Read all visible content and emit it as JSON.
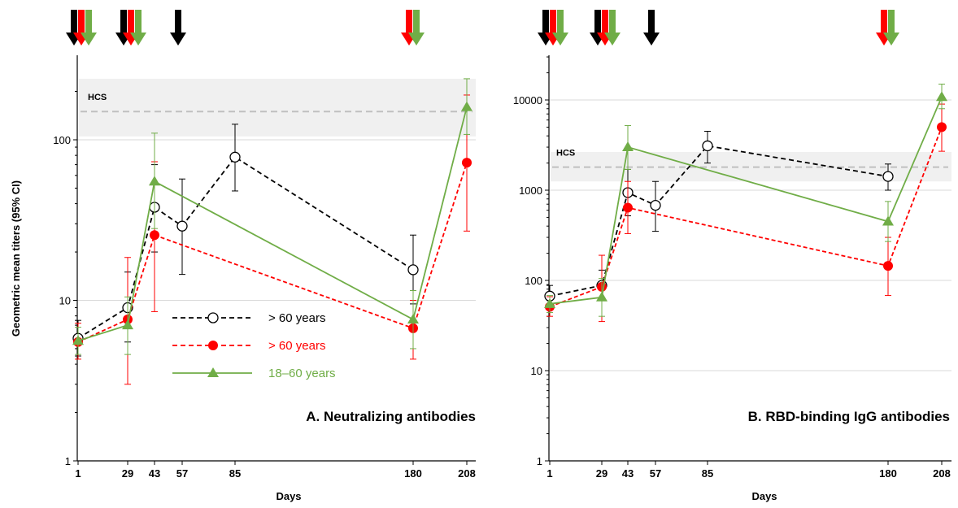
{
  "colors": {
    "black_series": "#000000",
    "red_series": "#ff0000",
    "green_series": "#70ad47",
    "hcs_band": "#f0f0f0",
    "hcs_line": "#bfbfbf",
    "gridline": "#d9d9d9"
  },
  "shared": {
    "ylabel": "Geometric mean titers (95% CI)",
    "xlabel": "Days",
    "hcs_label": "HCS",
    "legend": [
      {
        "label": "> 60 years",
        "color": "#000000",
        "marker": "open-circle",
        "dash": "dashed"
      },
      {
        "label": "> 60 years",
        "color": "#ff0000",
        "marker": "filled-circle",
        "dash": "dashed"
      },
      {
        "label": "18–60 years",
        "color": "#70ad47",
        "marker": "triangle",
        "dash": "solid"
      }
    ]
  },
  "chart_data": [
    {
      "type": "line",
      "title": "A. Neutralizing antibodies",
      "xlabel": "Days",
      "ylabel": "Geometric mean titers (95% CI)",
      "y_scale": "log",
      "ylim": [
        1,
        250
      ],
      "yticks": [
        1,
        10,
        100
      ],
      "xticks": [
        1,
        29,
        43,
        57,
        85,
        180,
        208
      ],
      "grid": "horizontal major",
      "legend_position": "bottom-left",
      "hcs": {
        "value": 150,
        "band": [
          105,
          240
        ]
      },
      "dose_arrows": [
        {
          "day": 1,
          "colors": [
            "black",
            "red",
            "green"
          ]
        },
        {
          "day": 29,
          "colors": [
            "black",
            "red",
            "green"
          ]
        },
        {
          "day": 57,
          "colors": [
            "black"
          ]
        },
        {
          "day": 180,
          "colors": [
            "red",
            "green"
          ]
        }
      ],
      "series": [
        {
          "name": "> 60 years",
          "color": "#000000",
          "marker": "open-circle",
          "x": [
            1,
            29,
            43,
            57,
            85,
            180
          ],
          "y": [
            5.8,
            9,
            38,
            29,
            78,
            15.5
          ],
          "ci_low": [
            4.5,
            5.5,
            20,
            14.5,
            48,
            9.5
          ],
          "ci_high": [
            7.5,
            15,
            70,
            57,
            125,
            25.5
          ]
        },
        {
          "name": "> 60 years",
          "color": "#ff0000",
          "marker": "filled-circle",
          "x": [
            1,
            29,
            43,
            180,
            208
          ],
          "y": [
            5.5,
            7.6,
            25.5,
            6.7,
            72
          ],
          "ci_low": [
            4.3,
            3,
            8.5,
            4.3,
            27
          ],
          "ci_high": [
            7.2,
            18.5,
            73,
            10,
            190
          ]
        },
        {
          "name": "18–60 years",
          "color": "#70ad47",
          "marker": "triangle",
          "x": [
            1,
            29,
            43,
            180,
            208
          ],
          "y": [
            5.6,
            7,
            55,
            7.6,
            160
          ],
          "ci_low": [
            4.6,
            4.6,
            28,
            5,
            108
          ],
          "ci_high": [
            6.8,
            10.5,
            110,
            11.5,
            240
          ]
        }
      ]
    },
    {
      "type": "line",
      "title": "B. RBD-binding IgG antibodies",
      "xlabel": "Days",
      "y_scale": "log",
      "ylim": [
        1,
        30000
      ],
      "yticks": [
        1,
        10,
        100,
        1000,
        10000
      ],
      "xticks": [
        1,
        29,
        43,
        57,
        85,
        180,
        208
      ],
      "grid": "horizontal major",
      "hcs": {
        "value": 1800,
        "band": [
          1250,
          2650
        ]
      },
      "dose_arrows": [
        {
          "day": 1,
          "colors": [
            "black",
            "red",
            "green"
          ]
        },
        {
          "day": 29,
          "colors": [
            "black",
            "red",
            "green"
          ]
        },
        {
          "day": 57,
          "colors": [
            "black"
          ]
        },
        {
          "day": 180,
          "colors": [
            "red",
            "green"
          ]
        }
      ],
      "series": [
        {
          "name": "> 60 years",
          "color": "#000000",
          "marker": "open-circle",
          "x": [
            1,
            29,
            43,
            57,
            85,
            180
          ],
          "y": [
            67,
            88,
            940,
            680,
            3100,
            1420
          ],
          "ci_low": [
            52,
            62,
            520,
            350,
            2000,
            1000
          ],
          "ci_high": [
            88,
            130,
            1700,
            1250,
            4500,
            1950
          ]
        },
        {
          "name": "> 60 years",
          "color": "#ff0000",
          "marker": "filled-circle",
          "x": [
            1,
            29,
            43,
            180,
            208
          ],
          "y": [
            51,
            85,
            640,
            145,
            5000
          ],
          "ci_low": [
            40,
            35,
            330,
            68,
            2700
          ],
          "ci_high": [
            66,
            190,
            1250,
            300,
            9000
          ]
        },
        {
          "name": "18–60 years",
          "color": "#70ad47",
          "marker": "triangle",
          "x": [
            1,
            29,
            43,
            180,
            208
          ],
          "y": [
            55,
            65,
            3000,
            450,
            10800
          ],
          "ci_low": [
            44,
            40,
            1700,
            270,
            8000
          ],
          "ci_high": [
            68,
            105,
            5200,
            750,
            15000
          ]
        }
      ]
    }
  ]
}
